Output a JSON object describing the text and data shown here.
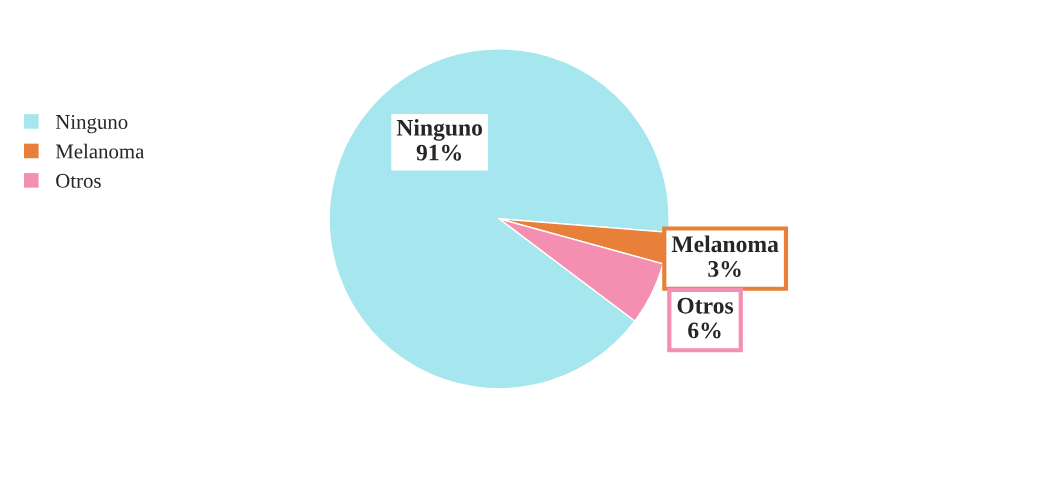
{
  "chart_data": {
    "type": "pie",
    "categories": [
      "Ninguno",
      "Melanoma",
      "Otros"
    ],
    "values": [
      91,
      3,
      6
    ],
    "value_labels": [
      "91%",
      "3%",
      "6%"
    ],
    "colors": [
      "#a6e6ee",
      "#e9803a",
      "#f48fb1"
    ],
    "legend": "left"
  }
}
